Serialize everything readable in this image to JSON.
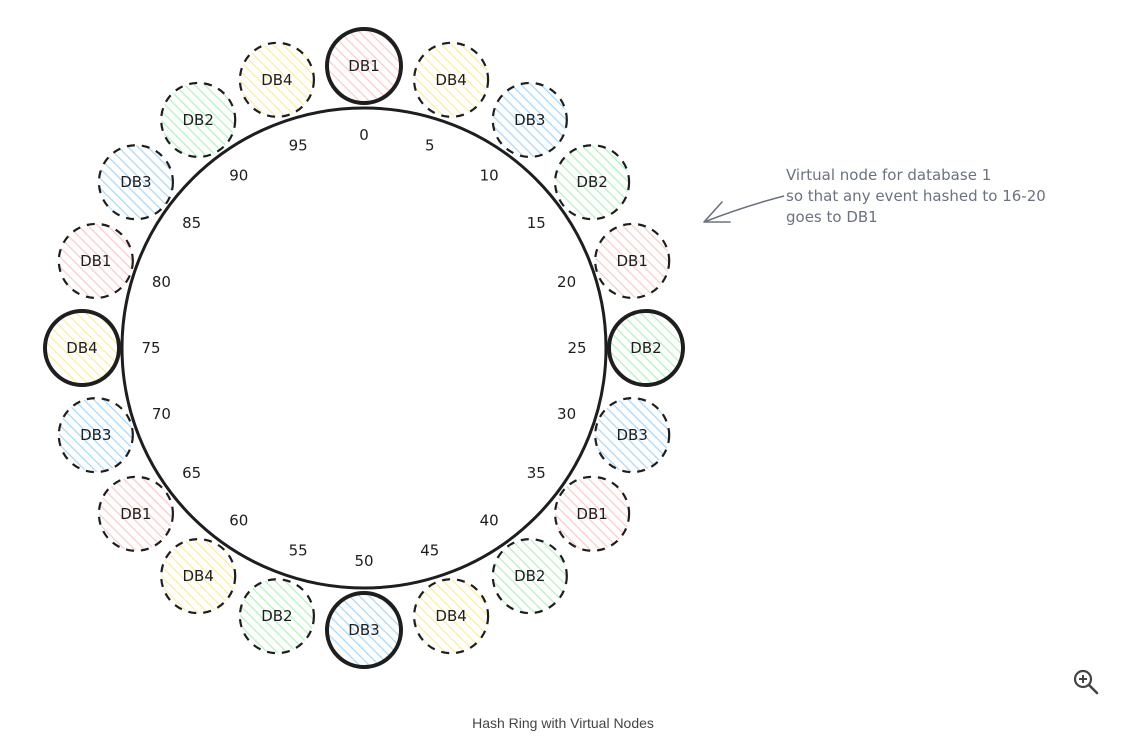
{
  "diagram": {
    "ticks": [
      "0",
      "5",
      "10",
      "15",
      "20",
      "25",
      "30",
      "35",
      "40",
      "45",
      "50",
      "55",
      "60",
      "65",
      "70",
      "75",
      "80",
      "85",
      "90",
      "95"
    ],
    "nodes": [
      {
        "label": "DB1",
        "color": "#ffc9c9",
        "primary": true
      },
      {
        "label": "DB4",
        "color": "#ffec99",
        "primary": false
      },
      {
        "label": "DB3",
        "color": "#a5d8ff",
        "primary": false
      },
      {
        "label": "DB2",
        "color": "#b2f2bb",
        "primary": false
      },
      {
        "label": "DB1",
        "color": "#ffc9c9",
        "primary": false
      },
      {
        "label": "DB2",
        "color": "#b2f2bb",
        "primary": true
      },
      {
        "label": "DB3",
        "color": "#a5d8ff",
        "primary": false
      },
      {
        "label": "DB1",
        "color": "#ffc9c9",
        "primary": false
      },
      {
        "label": "DB2",
        "color": "#b2f2bb",
        "primary": false
      },
      {
        "label": "DB4",
        "color": "#ffec99",
        "primary": false
      },
      {
        "label": "DB3",
        "color": "#a5d8ff",
        "primary": true
      },
      {
        "label": "DB2",
        "color": "#b2f2bb",
        "primary": false
      },
      {
        "label": "DB4",
        "color": "#ffec99",
        "primary": false
      },
      {
        "label": "DB1",
        "color": "#ffc9c9",
        "primary": false
      },
      {
        "label": "DB3",
        "color": "#a5d8ff",
        "primary": false
      },
      {
        "label": "DB4",
        "color": "#ffec99",
        "primary": true
      },
      {
        "label": "DB1",
        "color": "#ffc9c9",
        "primary": false
      },
      {
        "label": "DB3",
        "color": "#a5d8ff",
        "primary": false
      },
      {
        "label": "DB2",
        "color": "#b2f2bb",
        "primary": false
      },
      {
        "label": "DB4",
        "color": "#ffec99",
        "primary": false
      }
    ],
    "annotation": {
      "lines": [
        "Virtual node for database 1",
        "so that any event hashed to 16-20",
        "goes to DB1"
      ]
    }
  },
  "caption": "Hash Ring with Virtual Nodes",
  "zoom_icon": "zoom-in-icon",
  "colors": {
    "stroke": "#1e1e1e",
    "annotation": "#6b7280"
  }
}
